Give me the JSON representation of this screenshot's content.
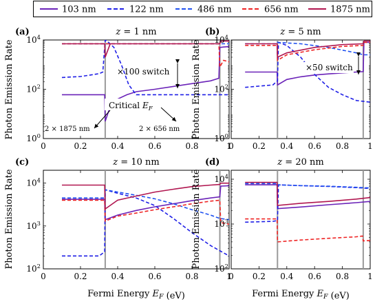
{
  "legend": [
    {
      "label": "103 nm",
      "color": "#6a22b8",
      "dash": false
    },
    {
      "label": "122 nm",
      "color": "#1e1ee6",
      "dash": true
    },
    {
      "label": "486 nm",
      "color": "#1e50f0",
      "dash": true
    },
    {
      "label": "656 nm",
      "color": "#ee2222",
      "dash": true
    },
    {
      "label": "1875 nm",
      "color": "#b0154f",
      "dash": false
    }
  ],
  "xlabel": "Fermi Energy E_F (eV)",
  "ylabel": "Photon Emission Rate",
  "annotations": {
    "switch_a": "×100 switch",
    "switch_b": "×50 switch",
    "critical": "Critical E_F",
    "left_note": "2 × 1875 nm",
    "right_note": "2 × 656 nm"
  },
  "chart_data": [
    {
      "type": "line",
      "panel": "(a)",
      "title": "z = 1 nm",
      "log_y": true,
      "xlim": [
        0,
        1
      ],
      "ylim_exp": [
        0,
        4
      ],
      "xticks": [
        "0",
        "0.2",
        "0.4",
        "0.6",
        "0.8",
        "1"
      ],
      "yticks": [
        "10^0",
        "10^2",
        "10^4"
      ],
      "vlines": [
        0.333,
        0.95
      ],
      "series": [
        {
          "name": "103 nm",
          "x": [
            0.1,
            0.33,
            0.333,
            0.36,
            0.4,
            0.45,
            0.5,
            0.6,
            0.7,
            0.8,
            0.9,
            0.945,
            0.95,
            0.97,
            1.0
          ],
          "y": [
            60,
            60,
            5,
            20,
            40,
            60,
            80,
            100,
            130,
            170,
            220,
            280,
            5000,
            5200,
            5400
          ]
        },
        {
          "name": "122 nm",
          "x": [
            0.1,
            0.2,
            0.3,
            0.32,
            0.333,
            0.34,
            0.38,
            0.42,
            0.46,
            0.5,
            0.6,
            0.7,
            0.8,
            0.9,
            0.95,
            1.0
          ],
          "y": [
            300,
            330,
            430,
            500,
            10000,
            9500,
            5000,
            1000,
            150,
            60,
            60,
            60,
            60,
            60,
            60,
            60
          ]
        },
        {
          "name": "486 nm",
          "x": [
            0.1,
            0.33,
            0.333,
            0.4,
            0.6,
            0.8,
            0.95,
            0.955,
            1.0
          ],
          "y": [
            7000,
            7000,
            7000,
            7000,
            7000,
            7000,
            7000,
            7000,
            7000
          ]
        },
        {
          "name": "656 nm",
          "x": [
            0.1,
            0.33,
            0.333,
            0.5,
            0.9,
            0.945,
            0.95,
            0.97,
            1.0
          ],
          "y": [
            7000,
            7000,
            7000,
            7000,
            7000,
            7000,
            800,
            1500,
            1300
          ]
        },
        {
          "name": "1875 nm",
          "x": [
            0.1,
            0.33,
            0.333,
            0.36,
            0.4,
            0.6,
            0.8,
            0.95,
            0.955,
            1.0
          ],
          "y": [
            7000,
            7000,
            2000,
            7000,
            7000,
            7000,
            7000,
            7000,
            9000,
            9000
          ]
        }
      ]
    },
    {
      "type": "line",
      "panel": "(b)",
      "title": "z = 5 nm",
      "log_y": true,
      "xlim": [
        0,
        1
      ],
      "ylim_exp": [
        0,
        4
      ],
      "xticks": [
        "0",
        "0.2",
        "0.4",
        "0.6",
        "0.8",
        "1"
      ],
      "yticks": [
        "10^0",
        "10^2",
        "10^4"
      ],
      "vlines": [
        0.333,
        0.95
      ],
      "series": [
        {
          "name": "103 nm",
          "x": [
            0.1,
            0.33,
            0.333,
            0.4,
            0.5,
            0.6,
            0.7,
            0.8,
            0.9,
            0.95,
            0.955,
            1.0
          ],
          "y": [
            500,
            500,
            150,
            250,
            320,
            380,
            420,
            460,
            500,
            520,
            8000,
            8000
          ]
        },
        {
          "name": "122 nm",
          "x": [
            0.1,
            0.3,
            0.333,
            0.34,
            0.4,
            0.5,
            0.6,
            0.7,
            0.8,
            0.9,
            1.0
          ],
          "y": [
            120,
            150,
            220,
            8000,
            6000,
            2000,
            400,
            120,
            60,
            35,
            30
          ]
        },
        {
          "name": "486 nm",
          "x": [
            0.1,
            0.33,
            0.333,
            0.5,
            0.7,
            0.9,
            0.95,
            1.0
          ],
          "y": [
            7000,
            7000,
            8000,
            7000,
            5000,
            3000,
            2500,
            2500
          ]
        },
        {
          "name": "656 nm",
          "x": [
            0.1,
            0.33,
            0.333,
            0.4,
            0.6,
            0.8,
            0.95,
            0.955,
            1.0
          ],
          "y": [
            6000,
            6000,
            1500,
            2500,
            4000,
            5500,
            6000,
            8000,
            8000
          ]
        },
        {
          "name": "1875 nm",
          "x": [
            0.1,
            0.33,
            0.333,
            0.4,
            0.6,
            0.8,
            0.95,
            0.955,
            1.0
          ],
          "y": [
            7000,
            7000,
            2000,
            3000,
            5000,
            6500,
            7000,
            9000,
            9000
          ]
        }
      ]
    },
    {
      "type": "line",
      "panel": "(c)",
      "title": "z = 10 nm",
      "log_y": true,
      "xlim": [
        0,
        1
      ],
      "ylim_exp": [
        2,
        4.3
      ],
      "xticks": [
        "0",
        "0.2",
        "0.4",
        "0.6",
        "0.8",
        "1"
      ],
      "yticks": [
        "10^2",
        "10^3",
        "10^4"
      ],
      "vlines": [
        0.333,
        0.95
      ],
      "series": [
        {
          "name": "103 nm",
          "x": [
            0.1,
            0.33,
            0.333,
            0.4,
            0.5,
            0.6,
            0.7,
            0.8,
            0.9,
            0.95,
            0.955,
            1.0
          ],
          "y": [
            4200,
            4200,
            1400,
            1800,
            2300,
            2800,
            3300,
            3900,
            4500,
            4800,
            8500,
            8700
          ]
        },
        {
          "name": "122 nm",
          "x": [
            0.1,
            0.3,
            0.33,
            0.333,
            0.36,
            0.4,
            0.5,
            0.6,
            0.7,
            0.8,
            0.9,
            1.0
          ],
          "y": [
            200,
            200,
            250,
            7000,
            6500,
            5800,
            4500,
            3000,
            1500,
            700,
            350,
            200
          ]
        },
        {
          "name": "486 nm",
          "x": [
            0.1,
            0.33,
            0.333,
            0.4,
            0.5,
            0.6,
            0.7,
            0.8,
            0.9,
            0.95,
            1.0
          ],
          "y": [
            4500,
            4500,
            7000,
            6200,
            5200,
            4300,
            3300,
            2400,
            1800,
            1500,
            1400
          ]
        },
        {
          "name": "656 nm",
          "x": [
            0.1,
            0.33,
            0.333,
            0.4,
            0.5,
            0.6,
            0.7,
            0.8,
            0.9,
            0.95,
            0.955,
            1.0
          ],
          "y": [
            4000,
            4000,
            1300,
            1700,
            2000,
            2400,
            2800,
            3300,
            3800,
            4000,
            1200,
            1100
          ]
        },
        {
          "name": "1875 nm",
          "x": [
            0.1,
            0.33,
            0.333,
            0.4,
            0.5,
            0.6,
            0.7,
            0.8,
            0.9,
            0.95,
            0.955,
            1.0
          ],
          "y": [
            9000,
            9000,
            2500,
            4000,
            5000,
            6200,
            7200,
            8300,
            9000,
            9300,
            10000,
            10000
          ]
        }
      ]
    },
    {
      "type": "line",
      "panel": "(d)",
      "title": "z = 20 nm",
      "log_y": true,
      "xlim": [
        0,
        1
      ],
      "ylim_exp": [
        2,
        4.2
      ],
      "xticks": [
        "0",
        "0.2",
        "0.4",
        "0.6",
        "0.8",
        "1"
      ],
      "yticks": [
        "10^2",
        "10^3",
        "10^4"
      ],
      "vlines": [
        0.333,
        0.95
      ],
      "series": [
        {
          "name": "103 nm",
          "x": [
            0.1,
            0.33,
            0.333,
            0.5,
            0.7,
            0.9,
            1.0
          ],
          "y": [
            7500,
            7500,
            2200,
            2400,
            2700,
            3000,
            3200
          ]
        },
        {
          "name": "122 nm",
          "x": [
            0.1,
            0.3,
            0.333,
            0.34,
            0.5,
            0.7,
            0.9,
            1.0
          ],
          "y": [
            1100,
            1150,
            1200,
            7500,
            7200,
            6900,
            6500,
            6200
          ]
        },
        {
          "name": "486 nm",
          "x": [
            0.1,
            0.33,
            0.333,
            0.5,
            0.7,
            0.9,
            1.0
          ],
          "y": [
            8000,
            8000,
            7500,
            7200,
            7000,
            6600,
            6400
          ]
        },
        {
          "name": "656 nm",
          "x": [
            0.1,
            0.33,
            0.333,
            0.5,
            0.7,
            0.9,
            0.945,
            0.95,
            1.0
          ],
          "y": [
            1300,
            1300,
            400,
            440,
            480,
            520,
            540,
            420,
            430
          ]
        },
        {
          "name": "1875 nm",
          "x": [
            0.1,
            0.33,
            0.333,
            0.5,
            0.7,
            0.9,
            1.0
          ],
          "y": [
            8500,
            8500,
            2600,
            2900,
            3200,
            3600,
            3900
          ]
        }
      ]
    }
  ]
}
